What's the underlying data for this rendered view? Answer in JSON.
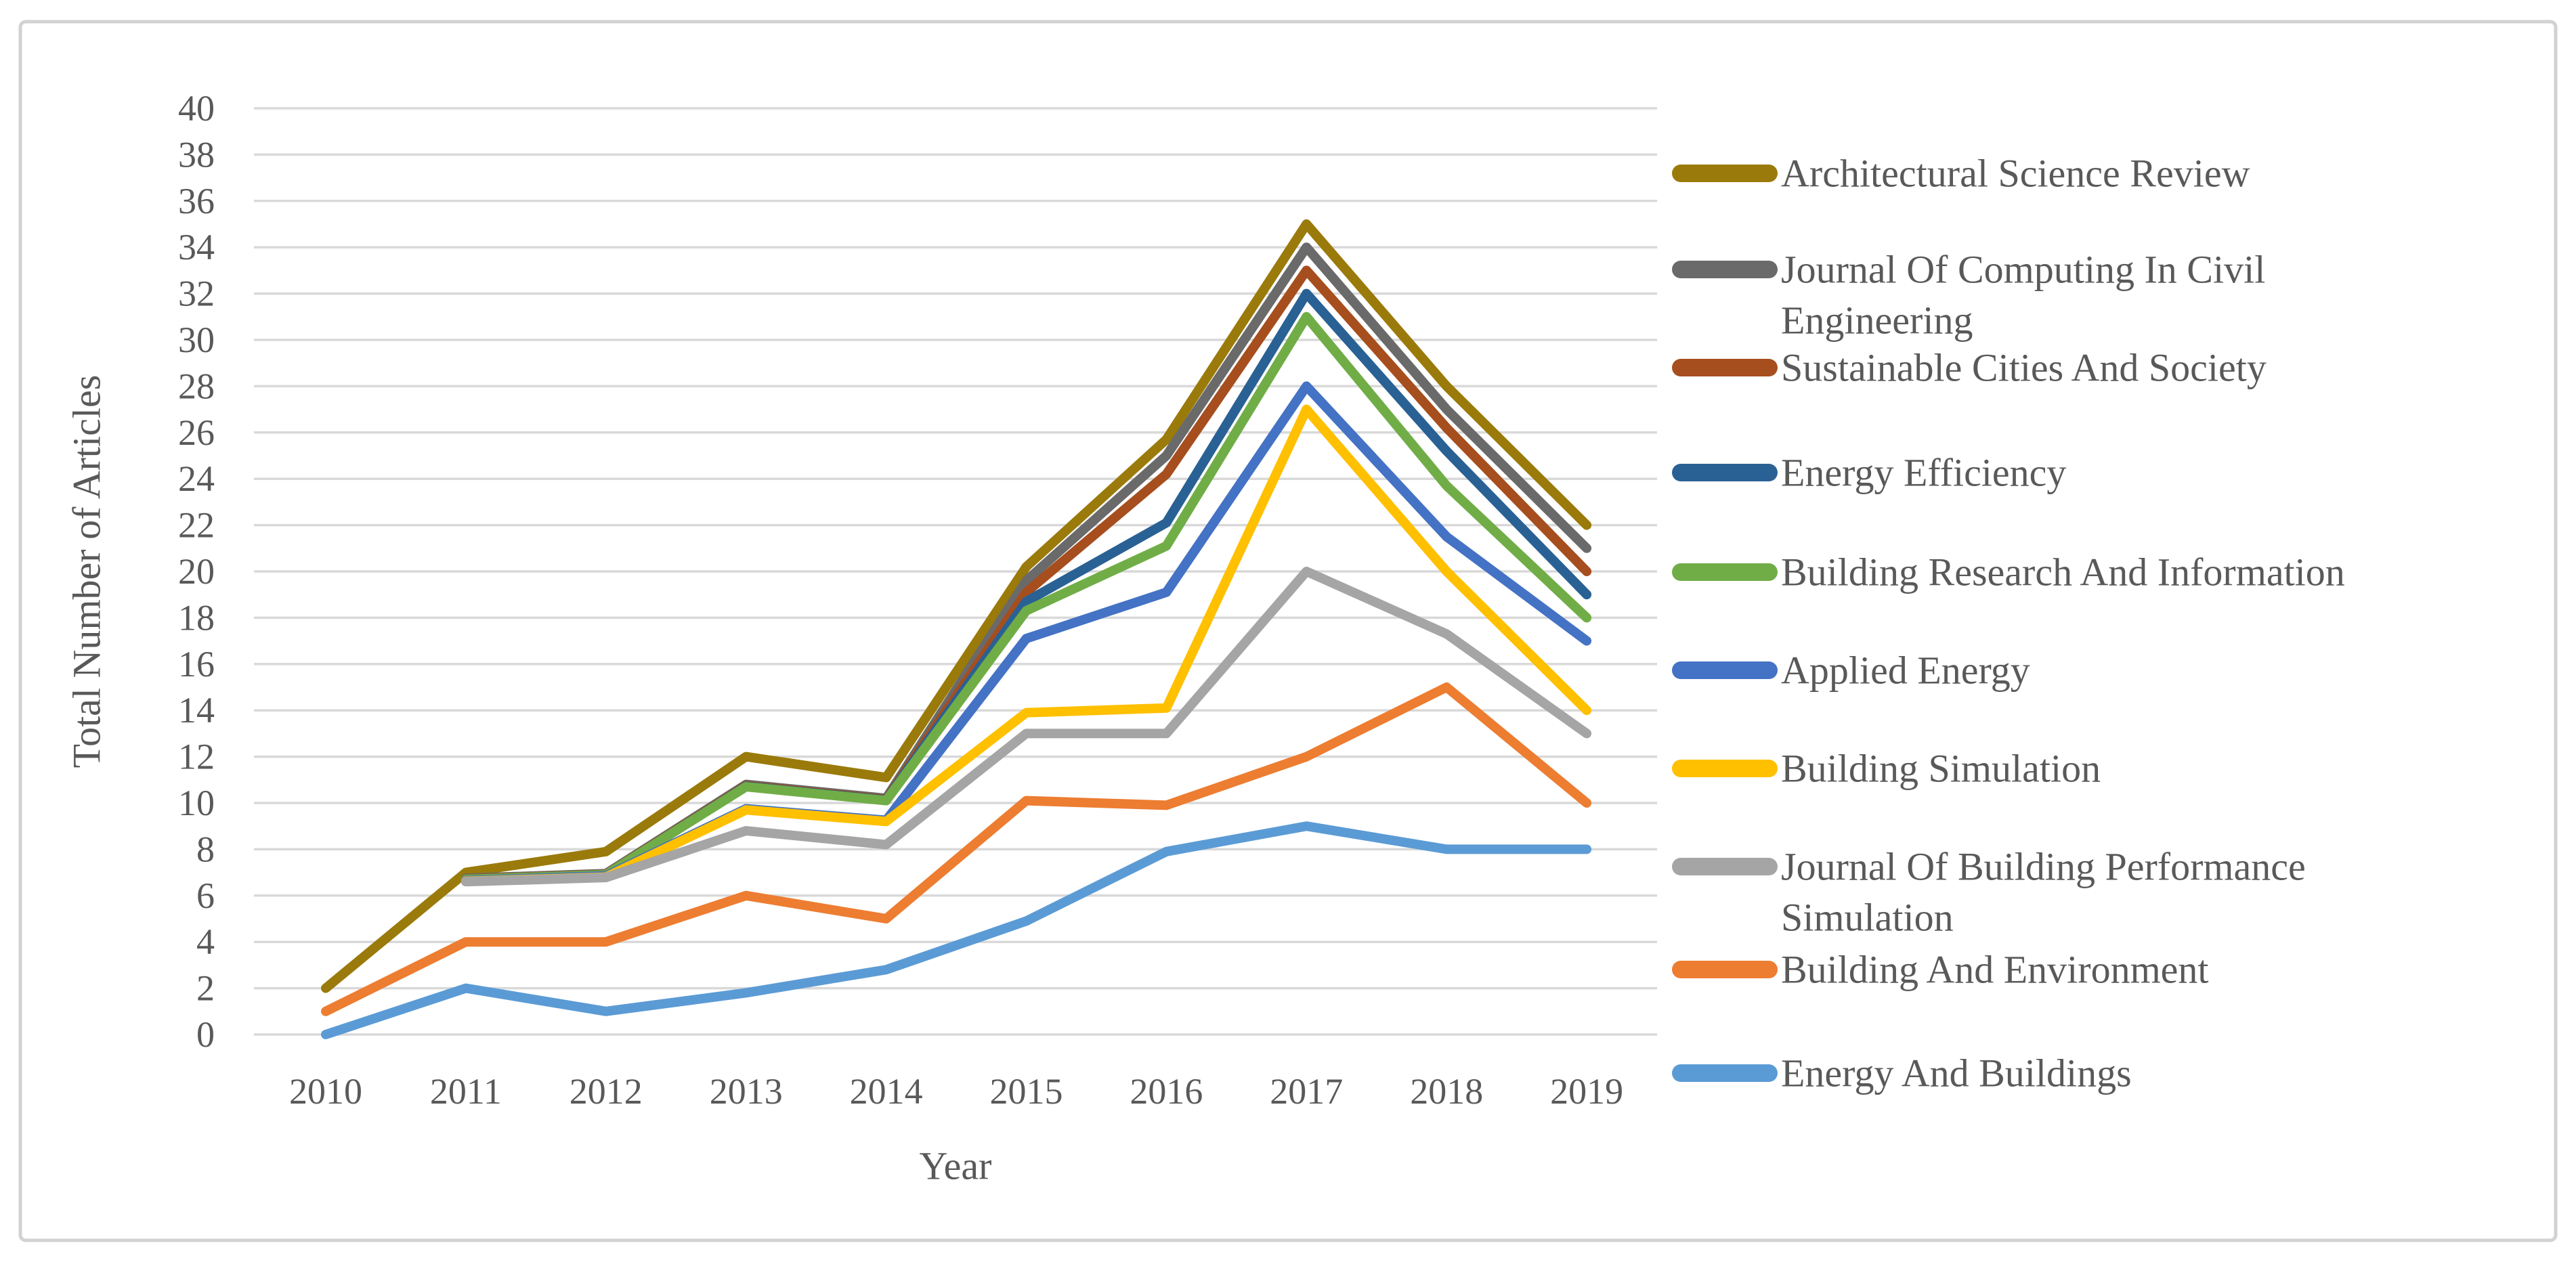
{
  "chart_data": {
    "type": "line",
    "title": "",
    "xlabel": "Year",
    "ylabel": "Total Number of Articles",
    "categories": [
      "2010",
      "2011",
      "2012",
      "2013",
      "2014",
      "2015",
      "2016",
      "2017",
      "2018",
      "2019"
    ],
    "ylim": [
      0,
      40
    ],
    "ytick_step": 2,
    "grid": "horizontal-only",
    "gridline_color": "#D9D9D9",
    "axis_text_color": "#595959",
    "background_color": "#FFFFFF",
    "border_color": "#D2D2D2",
    "legend_position": "right",
    "series": [
      {
        "name": "Architectural Science Review",
        "legend_lines": [
          "Architectural Science Review"
        ],
        "color": "#9A7A0A",
        "values": [
          2,
          7,
          7.9,
          12,
          11.1,
          20.2,
          25.7,
          35,
          28,
          22
        ]
      },
      {
        "name": "Journal Of Computing In Civil Engineering",
        "legend_lines": [
          "Journal Of Computing In Civil",
          "Engineering"
        ],
        "color": "#6A6A6A",
        "values": [
          null,
          6.75,
          6.95,
          10.8,
          10.2,
          19.6,
          25,
          34,
          27,
          21
        ]
      },
      {
        "name": "Sustainable Cities And Society",
        "legend_lines": [
          "Sustainable Cities And Society"
        ],
        "color": "#A64E1E",
        "values": [
          null,
          6.72,
          6.92,
          10.75,
          10.15,
          19.1,
          24.2,
          33,
          26.2,
          20
        ]
      },
      {
        "name": "Energy Efficiency",
        "legend_lines": [
          "Energy Efficiency"
        ],
        "color": "#2A6194",
        "values": [
          null,
          6.7,
          6.9,
          10.72,
          10.12,
          18.7,
          22.1,
          32,
          25.2,
          19
        ]
      },
      {
        "name": "Building Research And Information",
        "legend_lines": [
          "Building Research And Information"
        ],
        "color": "#70AD47",
        "values": [
          null,
          6.7,
          6.9,
          10.7,
          10.1,
          18.3,
          21.1,
          31,
          23.7,
          18
        ]
      },
      {
        "name": "Applied Energy",
        "legend_lines": [
          "Applied Energy"
        ],
        "color": "#4472C4",
        "values": [
          null,
          6.65,
          6.85,
          9.75,
          9.25,
          17.1,
          19.1,
          28,
          21.5,
          17
        ]
      },
      {
        "name": "Building Simulation",
        "legend_lines": [
          "Building Simulation"
        ],
        "color": "#FFC000",
        "values": [
          null,
          6.62,
          6.8,
          9.7,
          9.2,
          13.9,
          14.1,
          27,
          20,
          14
        ]
      },
      {
        "name": "Journal Of Building Performance Simulation",
        "legend_lines": [
          "Journal Of Building Performance",
          "Simulation"
        ],
        "color": "#A5A5A5",
        "values": [
          null,
          6.6,
          6.78,
          8.8,
          8.2,
          13,
          13,
          20,
          17.3,
          13
        ]
      },
      {
        "name": "Building And Environment",
        "legend_lines": [
          "Building And Environment"
        ],
        "color": "#ED7D31",
        "values": [
          1,
          4,
          4,
          6,
          5,
          10.1,
          9.9,
          12,
          15,
          10
        ]
      },
      {
        "name": "Energy And Buildings",
        "legend_lines": [
          "Energy And Buildings"
        ],
        "color": "#5B9BD5",
        "values": [
          0,
          2,
          1,
          1.8,
          2.8,
          4.9,
          7.9,
          9,
          8,
          8
        ]
      }
    ]
  }
}
